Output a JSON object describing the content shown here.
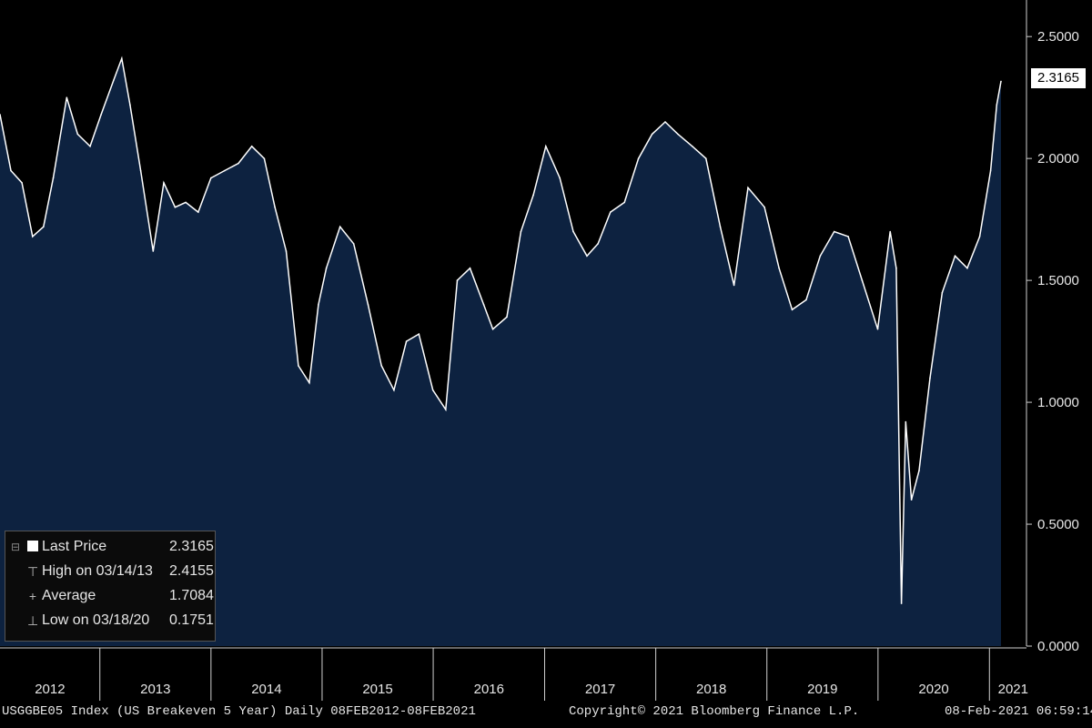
{
  "chart_data": {
    "type": "area",
    "title": "",
    "xlabel": "",
    "ylabel": "",
    "ylim": [
      0,
      2.65
    ],
    "y_ticks": [
      "2.5000",
      "2.0000",
      "1.5000",
      "1.0000",
      "0.5000",
      "0.0000"
    ],
    "x_tick_labels": [
      "2012",
      "2013",
      "2014",
      "2015",
      "2016",
      "2017",
      "2018",
      "2019",
      "2020",
      "2021"
    ],
    "x_range": [
      "2012-02-08",
      "2021-02-08"
    ],
    "grid": false,
    "legend_position": "bottom-left",
    "series": [
      {
        "values_x": [
          "2012-02-08",
          "2012-03-15",
          "2012-04-20",
          "2012-05-25",
          "2012-06-30",
          "2012-08-01",
          "2012-09-14",
          "2012-10-20",
          "2012-11-30",
          "2013-01-05",
          "2013-02-15",
          "2013-03-14",
          "2013-04-10",
          "2013-05-15",
          "2013-06-25",
          "2013-07-30",
          "2013-09-05",
          "2013-10-10",
          "2013-11-20",
          "2014-01-01",
          "2014-02-15",
          "2014-04-01",
          "2014-05-15",
          "2014-06-25",
          "2014-07-30",
          "2014-09-05",
          "2014-10-15",
          "2014-11-20",
          "2014-12-20",
          "2015-01-15",
          "2015-03-01",
          "2015-04-15",
          "2015-06-01",
          "2015-07-15",
          "2015-08-25",
          "2015-10-05",
          "2015-11-15",
          "2015-12-31",
          "2016-02-11",
          "2016-03-20",
          "2016-05-01",
          "2016-06-15",
          "2016-07-15",
          "2016-08-30",
          "2016-10-15",
          "2016-11-25",
          "2017-01-05",
          "2017-02-20",
          "2017-04-05",
          "2017-05-20",
          "2017-06-25",
          "2017-08-05",
          "2017-09-20",
          "2017-11-05",
          "2017-12-20",
          "2018-02-01",
          "2018-03-15",
          "2018-05-01",
          "2018-06-15",
          "2018-08-01",
          "2018-09-15",
          "2018-10-31",
          "2018-12-24",
          "2019-02-10",
          "2019-03-25",
          "2019-05-10",
          "2019-06-25",
          "2019-08-10",
          "2019-09-25",
          "2019-11-10",
          "2019-12-31",
          "2020-02-10",
          "2020-03-01",
          "2020-03-18",
          "2020-04-01",
          "2020-04-20",
          "2020-05-15",
          "2020-06-20",
          "2020-07-30",
          "2020-09-10",
          "2020-10-20",
          "2020-11-30",
          "2021-01-05",
          "2021-01-25",
          "2021-02-08"
        ],
        "values": [
          2.18,
          1.95,
          1.9,
          1.68,
          1.72,
          1.92,
          2.25,
          2.1,
          2.05,
          2.18,
          2.32,
          2.41,
          2.22,
          1.95,
          1.62,
          1.9,
          1.8,
          1.82,
          1.78,
          1.92,
          1.95,
          1.98,
          2.05,
          2.0,
          1.8,
          1.62,
          1.15,
          1.08,
          1.4,
          1.55,
          1.72,
          1.65,
          1.4,
          1.15,
          1.05,
          1.25,
          1.28,
          1.05,
          0.97,
          1.5,
          1.55,
          1.4,
          1.3,
          1.35,
          1.7,
          1.85,
          2.05,
          1.92,
          1.7,
          1.6,
          1.65,
          1.78,
          1.82,
          2.0,
          2.1,
          2.15,
          2.1,
          2.05,
          2.0,
          1.72,
          1.48,
          1.88,
          1.8,
          1.55,
          1.38,
          1.42,
          1.6,
          1.7,
          1.68,
          1.5,
          1.3,
          1.7,
          1.55,
          0.1751,
          0.92,
          0.6,
          0.72,
          1.1,
          1.45,
          1.6,
          1.55,
          1.68,
          1.95,
          2.22,
          2.3165
        ]
      }
    ]
  },
  "legend": {
    "items": [
      {
        "label": "Last Price",
        "value": "2.3165",
        "icon": "square-icon"
      },
      {
        "label": "High on 03/14/13",
        "value": "2.4155",
        "icon": "high-marker-icon"
      },
      {
        "label": "Average",
        "value": "1.7084",
        "icon": "average-marker-icon"
      },
      {
        "label": "Low on 03/18/20",
        "value": "0.1751",
        "icon": "low-marker-icon"
      }
    ]
  },
  "last_price_badge": "2.3165",
  "footer": {
    "left": "USGGBE05 Index (US Breakeven 5 Year)  Daily 08FEB2012-08FEB2021",
    "center": "Copyright© 2021 Bloomberg Finance L.P.",
    "right": "08-Feb-2021 06:59:14"
  },
  "colors": {
    "background": "#000000",
    "area_fill": "#0d2240",
    "line": "#ffffff",
    "text": "#e6e6e6"
  }
}
